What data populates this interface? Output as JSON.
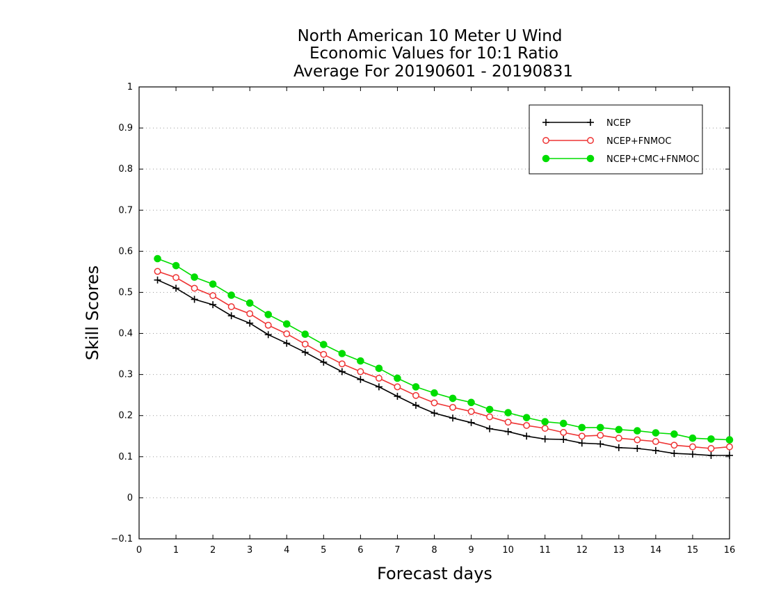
{
  "chart_data": {
    "type": "line",
    "title": [
      "North American 10 Meter U Wind",
      "Economic Values for 10:1 Ratio",
      "Average For 20190601 - 20190831"
    ],
    "xlabel": "Forecast days",
    "ylabel": "Skill Scores",
    "xlim": [
      0,
      16
    ],
    "ylim": [
      -0.1,
      1
    ],
    "xticks": [
      "0",
      "1",
      "2",
      "3",
      "4",
      "5",
      "6",
      "7",
      "8",
      "9",
      "10",
      "11",
      "12",
      "13",
      "14",
      "15",
      "16"
    ],
    "yticks": [
      "−0.1",
      "0",
      "0.1",
      "0.2",
      "0.3",
      "0.4",
      "0.5",
      "0.6",
      "0.7",
      "0.8",
      "0.9",
      "1"
    ],
    "grid": "horizontal dotted",
    "legend_position": "top-right",
    "x": [
      0.5,
      1,
      1.5,
      2,
      2.5,
      3,
      3.5,
      4,
      4.5,
      5,
      5.5,
      6,
      6.5,
      7,
      7.5,
      8,
      8.5,
      9,
      9.5,
      10,
      10.5,
      11,
      11.5,
      12,
      12.5,
      13,
      13.5,
      14,
      14.5,
      15,
      15.5,
      16
    ],
    "series": [
      {
        "name": "NCEP",
        "color": "#000000",
        "marker": "plus",
        "values": [
          0.53,
          0.51,
          0.483,
          0.47,
          0.443,
          0.425,
          0.397,
          0.376,
          0.354,
          0.33,
          0.307,
          0.288,
          0.27,
          0.247,
          0.225,
          0.206,
          0.194,
          0.183,
          0.168,
          0.161,
          0.15,
          0.143,
          0.142,
          0.133,
          0.131,
          0.122,
          0.12,
          0.115,
          0.108,
          0.106,
          0.103,
          0.103
        ]
      },
      {
        "name": "NCEP+FNMOC",
        "color": "#ee3333",
        "marker": "open-circle",
        "values": [
          0.551,
          0.536,
          0.51,
          0.492,
          0.465,
          0.448,
          0.42,
          0.399,
          0.374,
          0.349,
          0.326,
          0.307,
          0.291,
          0.27,
          0.249,
          0.231,
          0.22,
          0.21,
          0.197,
          0.184,
          0.176,
          0.169,
          0.159,
          0.15,
          0.152,
          0.145,
          0.141,
          0.137,
          0.128,
          0.124,
          0.12,
          0.124
        ]
      },
      {
        "name": "NCEP+CMC+FNMOC",
        "color": "#00dd00",
        "marker": "filled-circle",
        "values": [
          0.582,
          0.565,
          0.537,
          0.52,
          0.493,
          0.474,
          0.446,
          0.423,
          0.398,
          0.373,
          0.351,
          0.333,
          0.315,
          0.291,
          0.27,
          0.255,
          0.242,
          0.232,
          0.215,
          0.207,
          0.195,
          0.185,
          0.181,
          0.171,
          0.171,
          0.166,
          0.163,
          0.158,
          0.155,
          0.145,
          0.143,
          0.141
        ]
      }
    ]
  }
}
